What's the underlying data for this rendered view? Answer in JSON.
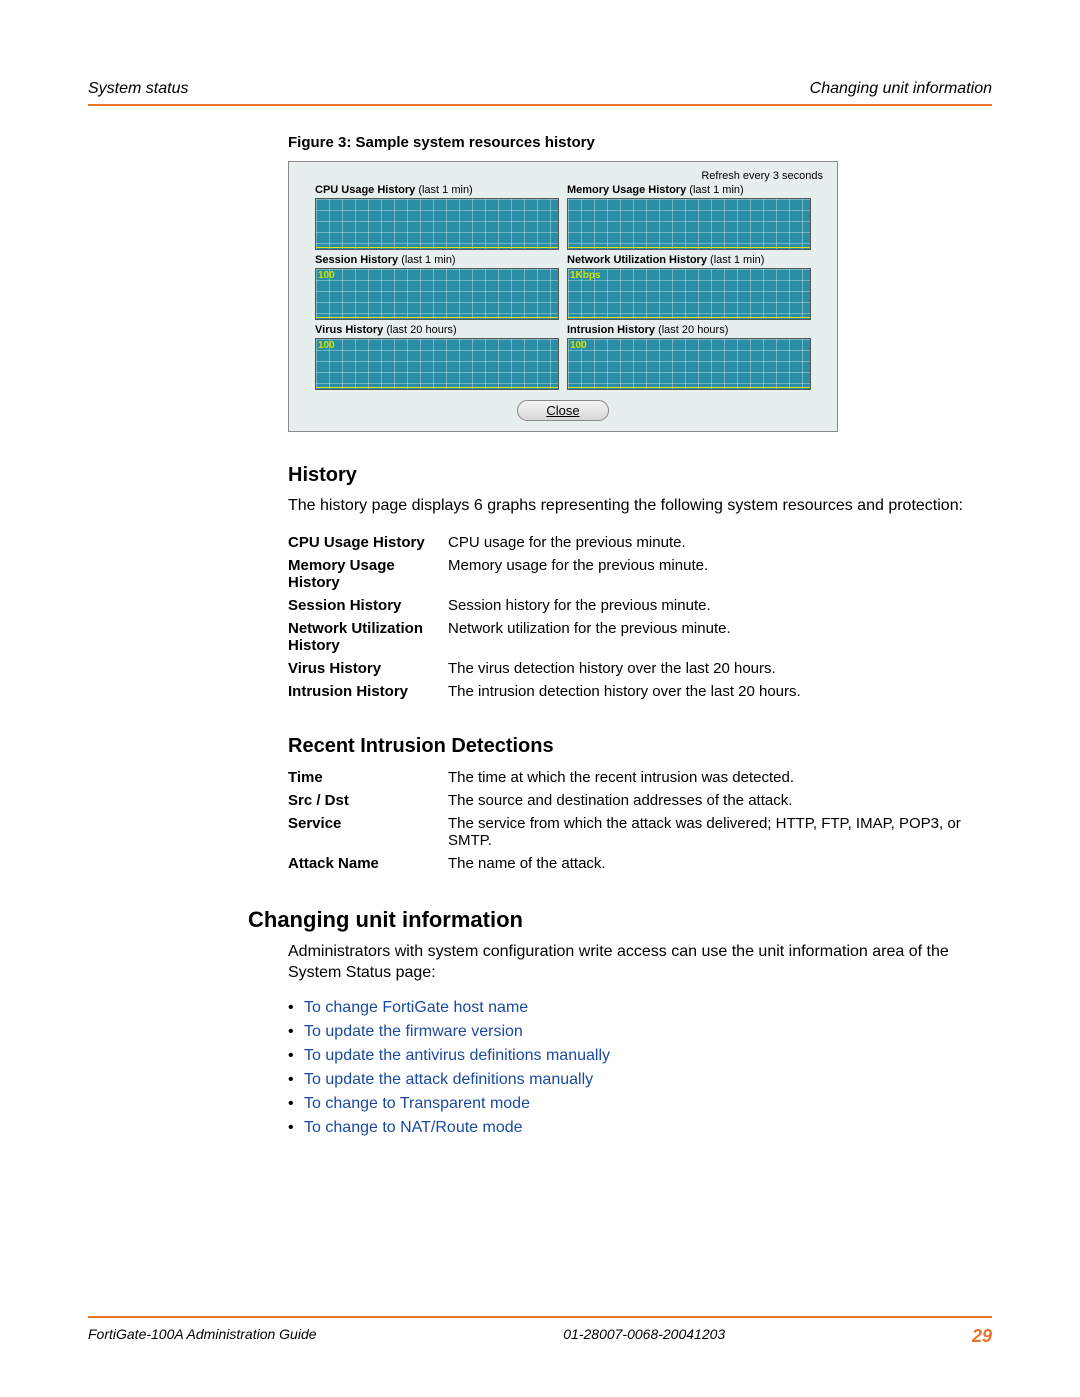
{
  "header": {
    "left": "System status",
    "right": "Changing unit information"
  },
  "figure": {
    "caption": "Figure 3:  Sample system resources history",
    "refresh": "Refresh every 3 seconds",
    "close_label": "Close",
    "panel_bg": "#e6efee",
    "chart_bg": "#2a8ea6",
    "chart_label_color": "#d2e000",
    "grid_line_color": "rgba(255,255,255,0.35)",
    "baseline_color": "#e8e000",
    "charts": [
      {
        "title_bold": "CPU Usage History",
        "title_rest": " (last 1 min)",
        "top_label": ""
      },
      {
        "title_bold": "Memory Usage History",
        "title_rest": " (last 1 min)",
        "top_label": ""
      },
      {
        "title_bold": "Session History",
        "title_rest": " (last 1 min)",
        "top_label": "100"
      },
      {
        "title_bold": "Network Utilization History",
        "title_rest": " (last 1 min)",
        "top_label": "1Kbps"
      },
      {
        "title_bold": "Virus History",
        "title_rest": " (last 20 hours)",
        "top_label": "100"
      },
      {
        "title_bold": "Intrusion History",
        "title_rest": " (last 20 hours)",
        "top_label": "100"
      }
    ]
  },
  "history": {
    "heading": "History",
    "intro": "The history page displays 6 graphs representing the following system resources and protection:",
    "rows": [
      {
        "term": "CPU Usage History",
        "desc": "CPU usage for the previous minute."
      },
      {
        "term": "Memory Usage History",
        "desc": "Memory usage for the previous minute."
      },
      {
        "term": "Session History",
        "desc": "Session history for the previous minute."
      },
      {
        "term": "Network Utilization History",
        "desc": "Network utilization for the previous minute."
      },
      {
        "term": "Virus History",
        "desc": "The virus detection history over the last 20 hours."
      },
      {
        "term": "Intrusion History",
        "desc": "The intrusion detection history over the last 20 hours."
      }
    ]
  },
  "intrusion": {
    "heading": "Recent Intrusion Detections",
    "rows": [
      {
        "term": "Time",
        "desc": "The time at which the recent intrusion was detected."
      },
      {
        "term": "Src / Dst",
        "desc": "The source and destination addresses of the attack."
      },
      {
        "term": "Service",
        "desc": "The service from which the attack was delivered; HTTP, FTP, IMAP, POP3, or SMTP."
      },
      {
        "term": "Attack Name",
        "desc": "The name of the attack."
      }
    ]
  },
  "changing": {
    "heading": "Changing unit information",
    "intro": "Administrators with system configuration write access can use the unit information area of the System Status page:",
    "links": [
      "To change FortiGate host name",
      "To update the firmware version",
      "To update the antivirus definitions manually",
      "To update the attack definitions manually",
      "To change to Transparent mode",
      "To change to NAT/Route mode"
    ]
  },
  "footer": {
    "left": "FortiGate-100A Administration Guide",
    "mid": "01-28007-0068-20041203",
    "page": "29",
    "rule_color": "#e8742c",
    "page_color": "#e8742c"
  }
}
